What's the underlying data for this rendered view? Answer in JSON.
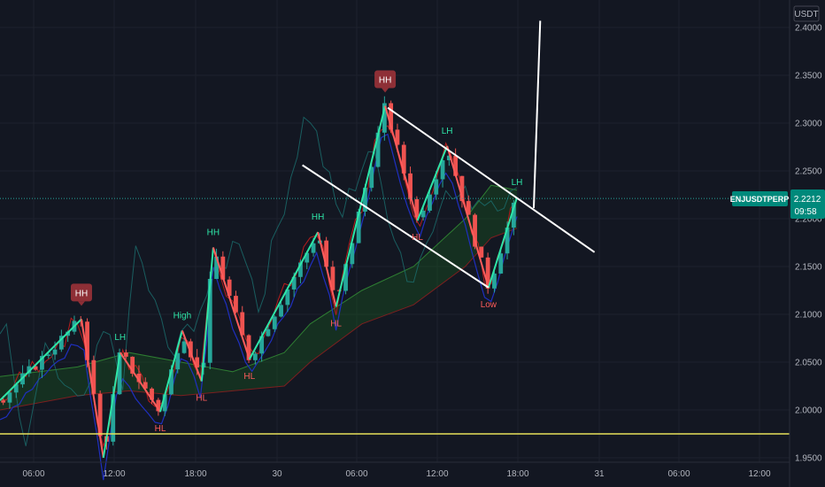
{
  "chart_data": {
    "type": "candlestick",
    "symbol_label": "ENJUSDTPERP",
    "currency": "USDT",
    "last_price": "2.2212",
    "countdown": "09:58",
    "colors": {
      "up": "#26a69a",
      "down": "#ef5350",
      "zigzag_up": "#2ee6a8",
      "zigzag_down": "#ff5c5c",
      "hh_badge": "#8e2f36",
      "support": "#e8e05a",
      "channel": "#ffffff",
      "baseline": "#1f2fbf",
      "conversion": "#b71c1c",
      "cloud": "#1b5e20"
    },
    "y_axis": {
      "min": 1.95,
      "max": 2.4,
      "tick_labels": [
        "2.4000",
        "2.3500",
        "2.3000",
        "2.2500",
        "2.2000",
        "2.1500",
        "2.1000",
        "2.0500",
        "2.0000",
        "1.9500"
      ]
    },
    "x_axis": {
      "tick_labels": [
        "06:00",
        "12:00",
        "18:00",
        "30",
        "06:00",
        "12:00",
        "18:00",
        "31",
        "06:00",
        "12:00"
      ]
    },
    "zigzag": [
      {
        "t": 0,
        "v": 2.01
      },
      {
        "t": 6.3,
        "v": 2.095,
        "label": "HH",
        "badge": true
      },
      {
        "t": 8.0,
        "v": 1.95
      },
      {
        "t": 9.3,
        "v": 2.06,
        "label": "LH"
      },
      {
        "t": 12.4,
        "v": 1.998,
        "label": "HL"
      },
      {
        "t": 14.1,
        "v": 2.083,
        "label": "High"
      },
      {
        "t": 15.6,
        "v": 2.03,
        "label": "HL"
      },
      {
        "t": 16.5,
        "v": 2.17,
        "label": "HH"
      },
      {
        "t": 19.3,
        "v": 2.053,
        "label": "HL"
      },
      {
        "t": 24.6,
        "v": 2.186,
        "label": "HH"
      },
      {
        "t": 26.0,
        "v": 2.108,
        "label": "HL"
      },
      {
        "t": 29.8,
        "v": 2.318,
        "label": "HH",
        "badge": true
      },
      {
        "t": 32.3,
        "v": 2.198,
        "label": "HL"
      },
      {
        "t": 34.6,
        "v": 2.276,
        "label": "LH"
      },
      {
        "t": 37.8,
        "v": 2.128,
        "label": "Low"
      },
      {
        "t": 40.0,
        "v": 2.222,
        "label": "LH"
      }
    ],
    "support_level": 1.975,
    "channel_upper": [
      {
        "t": 30.0,
        "v": 2.316
      },
      {
        "t": 46.0,
        "v": 2.165
      }
    ],
    "channel_lower": [
      {
        "t": 23.4,
        "v": 2.256
      },
      {
        "t": 37.8,
        "v": 2.128
      }
    ],
    "breakout_line": [
      {
        "t": 41.3,
        "v": 2.211
      },
      {
        "t": 41.8,
        "v": 2.407
      }
    ],
    "cloud": {
      "upper": [
        {
          "t": 0,
          "v": 2.035
        },
        {
          "t": 6,
          "v": 2.045
        },
        {
          "t": 10,
          "v": 2.06
        },
        {
          "t": 14,
          "v": 2.05
        },
        {
          "t": 18,
          "v": 2.04
        },
        {
          "t": 22,
          "v": 2.06
        },
        {
          "t": 24,
          "v": 2.09
        },
        {
          "t": 28,
          "v": 2.125
        },
        {
          "t": 32,
          "v": 2.15
        },
        {
          "t": 36,
          "v": 2.2
        },
        {
          "t": 38,
          "v": 2.235
        },
        {
          "t": 40,
          "v": 2.23
        }
      ],
      "lower": [
        {
          "t": 0,
          "v": 2.0
        },
        {
          "t": 6,
          "v": 2.015
        },
        {
          "t": 10,
          "v": 2.02
        },
        {
          "t": 14,
          "v": 2.015
        },
        {
          "t": 18,
          "v": 2.02
        },
        {
          "t": 22,
          "v": 2.025
        },
        {
          "t": 24,
          "v": 2.05
        },
        {
          "t": 28,
          "v": 2.09
        },
        {
          "t": 32,
          "v": 2.11
        },
        {
          "t": 36,
          "v": 2.15
        },
        {
          "t": 38,
          "v": 2.18
        },
        {
          "t": 40,
          "v": 2.19
        }
      ]
    }
  }
}
